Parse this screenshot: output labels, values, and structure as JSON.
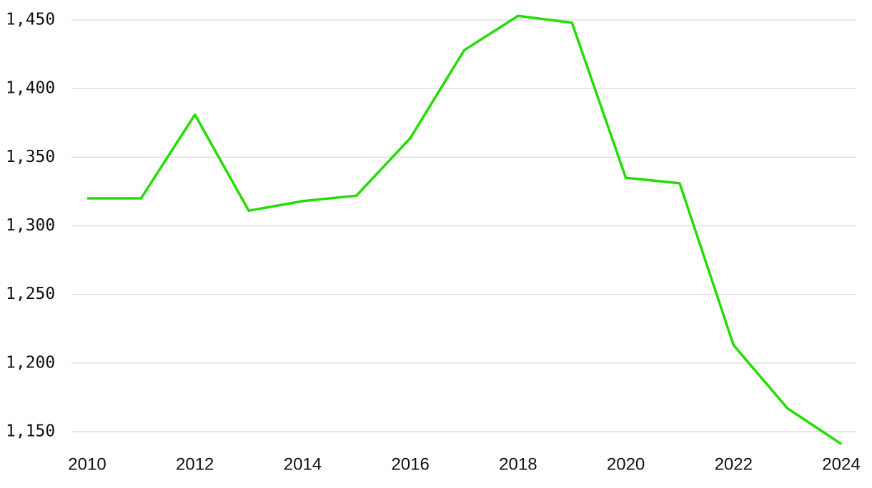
{
  "chart_data": {
    "type": "line",
    "x": [
      2010,
      2011,
      2012,
      2013,
      2014,
      2015,
      2016,
      2017,
      2018,
      2019,
      2020,
      2021,
      2022,
      2023,
      2024
    ],
    "series": [
      {
        "color": "#22dd00",
        "values": [
          1320,
          1320,
          1381,
          1311,
          1318,
          1322,
          1364,
          1428,
          1453,
          1448,
          1335,
          1331,
          1213,
          1167,
          1141
        ]
      }
    ],
    "xlim": [
      2010,
      2024
    ],
    "xticks": [
      2010,
      2012,
      2014,
      2016,
      2018,
      2020,
      2022,
      2024
    ],
    "ylim": [
      1140,
      1455
    ],
    "yticks": [
      {
        "value": 1150,
        "label": "1,150"
      },
      {
        "value": 1200,
        "label": "1,200"
      },
      {
        "value": 1250,
        "label": "1,250"
      },
      {
        "value": 1300,
        "label": "1,300"
      },
      {
        "value": 1350,
        "label": "1,350"
      },
      {
        "value": 1400,
        "label": "1,400"
      },
      {
        "value": 1450,
        "label": "1,450"
      }
    ],
    "grid": true
  }
}
